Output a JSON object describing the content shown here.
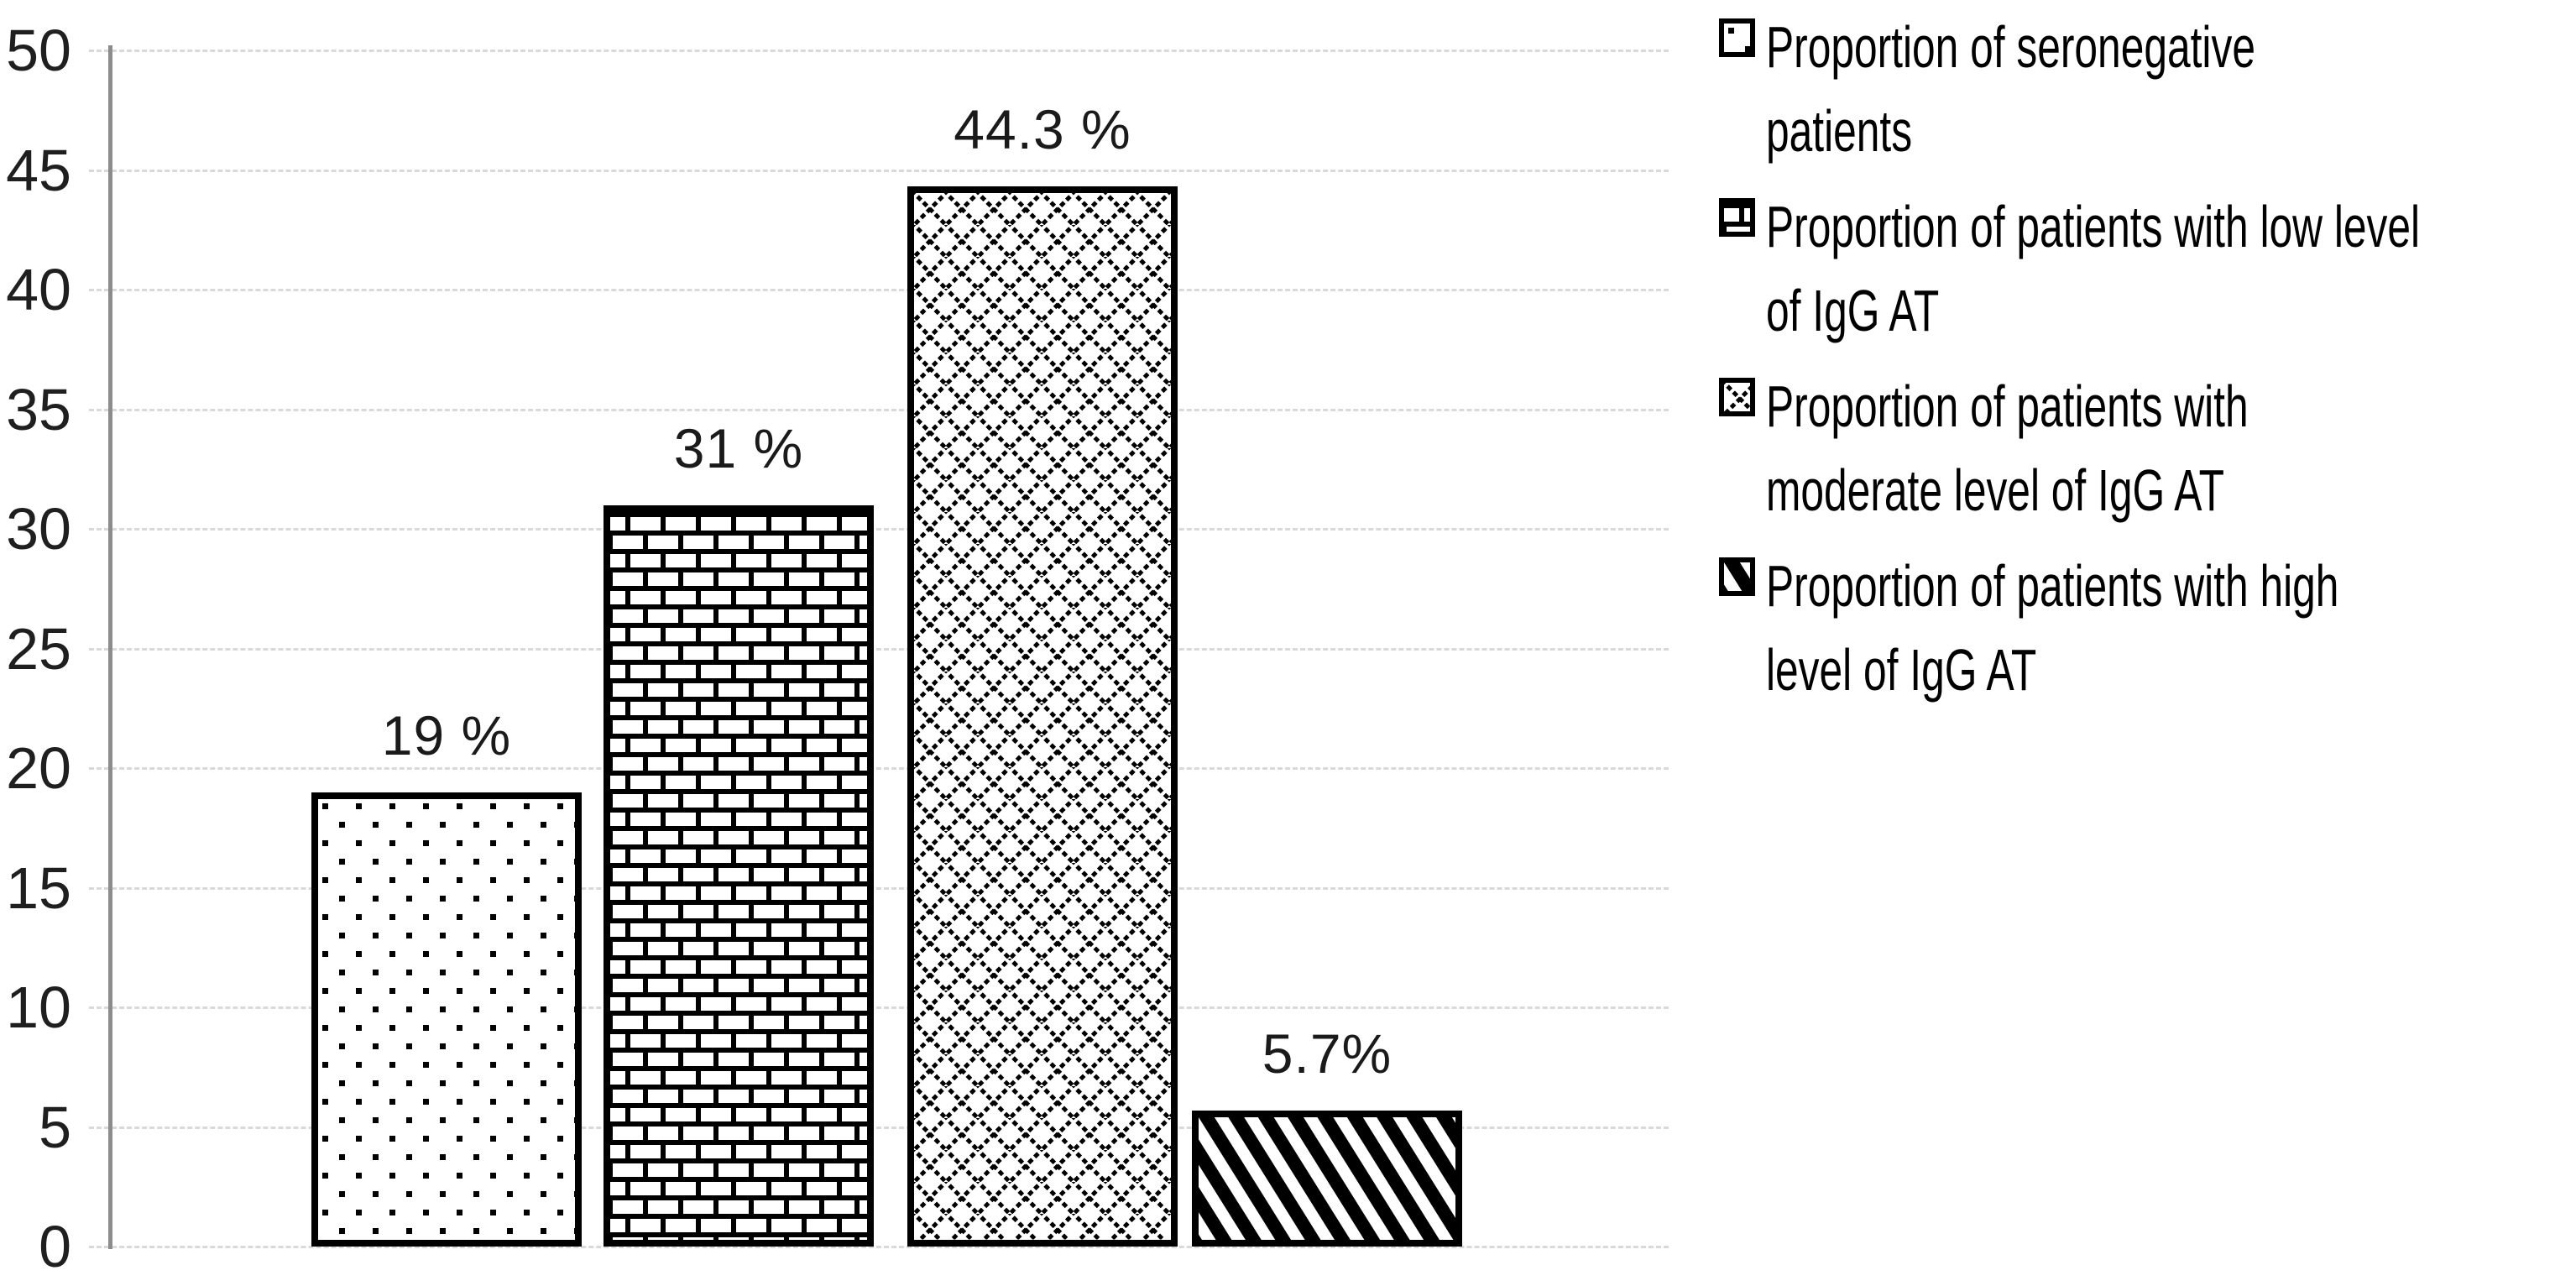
{
  "chart_data": {
    "type": "bar",
    "title": "",
    "xlabel": "",
    "ylabel": "",
    "ylim": [
      0,
      50
    ],
    "yticks": [
      0,
      5,
      10,
      15,
      20,
      25,
      30,
      35,
      40,
      45,
      50
    ],
    "grid": true,
    "gridline_style": "dashed",
    "legend_position": "right",
    "bar_fill": "white-with-black-pattern",
    "series": [
      {
        "name": "Proportion of seronegative patients",
        "value": 19,
        "label": "19 %",
        "pattern": "dots"
      },
      {
        "name": "Proportion of patients with low level of IgG AT",
        "value": 31,
        "label": "31 %",
        "pattern": "bricks"
      },
      {
        "name": "Proportion of patients with moderate level of IgG AT",
        "value": 44.3,
        "label": "44.3 %",
        "pattern": "diamond-lattice"
      },
      {
        "name": "Proportion of patients with high level of IgG AT",
        "value": 5.7,
        "label": "5.7%",
        "pattern": "diagonal-stripes"
      }
    ]
  },
  "legend": {
    "items": [
      {
        "pattern": "dots",
        "lines": [
          "Proportion of seronegative",
          "patients"
        ]
      },
      {
        "pattern": "bricks",
        "lines": [
          "Proportion of patients with low level",
          "of IgG AT"
        ]
      },
      {
        "pattern": "diamond-lattice",
        "lines": [
          "Proportion of patients with",
          "moderate level of IgG AT"
        ]
      },
      {
        "pattern": "diagonal-stripes",
        "lines": [
          "Proportion of patients with high",
          "level of IgG AT"
        ]
      }
    ]
  },
  "colors": {
    "background": "#ffffff",
    "pattern_ink": "#000000",
    "bar_border": "#000000",
    "gridline": "#d9d9d9",
    "axis_line": "#8c8c8c",
    "tick_text": "#1f1f1f",
    "label_text": "#1a1a1a"
  }
}
